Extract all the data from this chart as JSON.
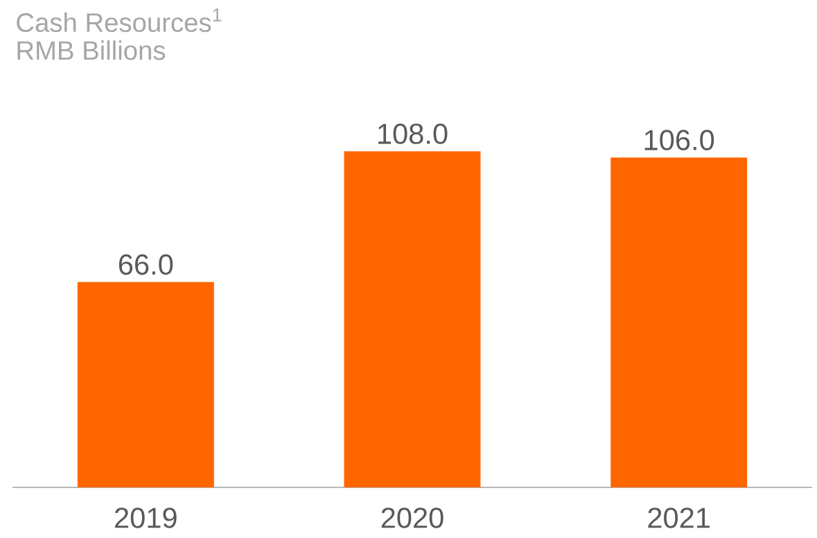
{
  "chart_data": {
    "type": "bar",
    "title": "Cash Resources$^{1}$",
    "subtitle": "RMB Billions",
    "categories": [
      "2019",
      "2020",
      "2021"
    ],
    "values": [
      66.0,
      108.0,
      106.0
    ],
    "value_labels": [
      "66.0",
      "108.0",
      "106.0"
    ],
    "color": "#ff6600"
  }
}
